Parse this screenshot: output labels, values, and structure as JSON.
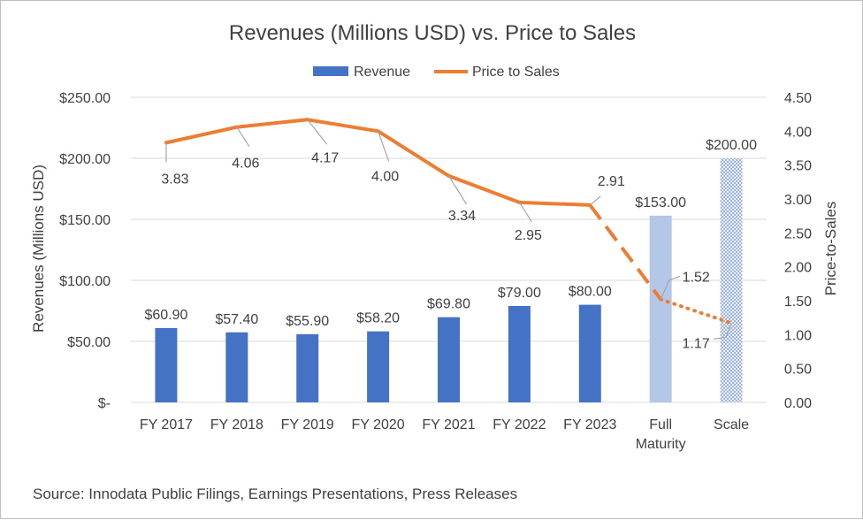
{
  "chart_data": {
    "type": "bar",
    "title": "Revenues (Millions USD) vs. Price to Sales",
    "ylabel": "Revenues (Millions USD)",
    "y2label": "Price-to-Sales",
    "ylim": [
      0,
      250
    ],
    "y2lim": [
      0,
      4.5
    ],
    "yticks": [
      "$-",
      "$50.00",
      "$100.00",
      "$150.00",
      "$200.00",
      "$250.00"
    ],
    "y2ticks": [
      "0.00",
      "0.50",
      "1.00",
      "1.50",
      "2.00",
      "2.50",
      "3.00",
      "3.50",
      "4.00",
      "4.50"
    ],
    "categories": [
      [
        "FY 2017"
      ],
      [
        "FY 2018"
      ],
      [
        "FY 2019"
      ],
      [
        "FY 2020"
      ],
      [
        "FY 2021"
      ],
      [
        "FY 2022"
      ],
      [
        "FY 2023"
      ],
      [
        "Full",
        "Maturity"
      ],
      [
        "Scale"
      ]
    ],
    "series": [
      {
        "name": "Revenue",
        "type": "bar",
        "axis": "left",
        "values": [
          60.9,
          57.4,
          55.9,
          58.2,
          69.8,
          79.0,
          80.0,
          153.0,
          200.0
        ],
        "labels": [
          "$60.90",
          "$57.40",
          "$55.90",
          "$58.20",
          "$69.80",
          "$79.00",
          "$80.00",
          "$153.00",
          "$200.00"
        ],
        "colors": [
          "#4472c4",
          "#4472c4",
          "#4472c4",
          "#4472c4",
          "#4472c4",
          "#4472c4",
          "#4472c4",
          "#b4c7e7",
          "#b4c7e7"
        ],
        "patterns": [
          "solid",
          "solid",
          "solid",
          "solid",
          "solid",
          "solid",
          "solid",
          "solid",
          "crosshatch"
        ]
      },
      {
        "name": "Price to Sales",
        "type": "line",
        "axis": "right",
        "color": "#ed7d31",
        "values": [
          3.83,
          4.06,
          4.17,
          4.0,
          3.34,
          2.95,
          2.91,
          1.52,
          1.17
        ],
        "labels": [
          "3.83",
          "4.06",
          "4.17",
          "4.00",
          "3.34",
          "2.95",
          "2.91",
          "1.52",
          "1.17"
        ],
        "segment_styles": [
          "solid",
          "solid",
          "solid",
          "solid",
          "solid",
          "solid",
          "dashed",
          "dotted"
        ]
      }
    ],
    "legend": "top",
    "grid": true,
    "source": "Source: Innodata Public Filings, Earnings Presentations, Press Releases"
  }
}
